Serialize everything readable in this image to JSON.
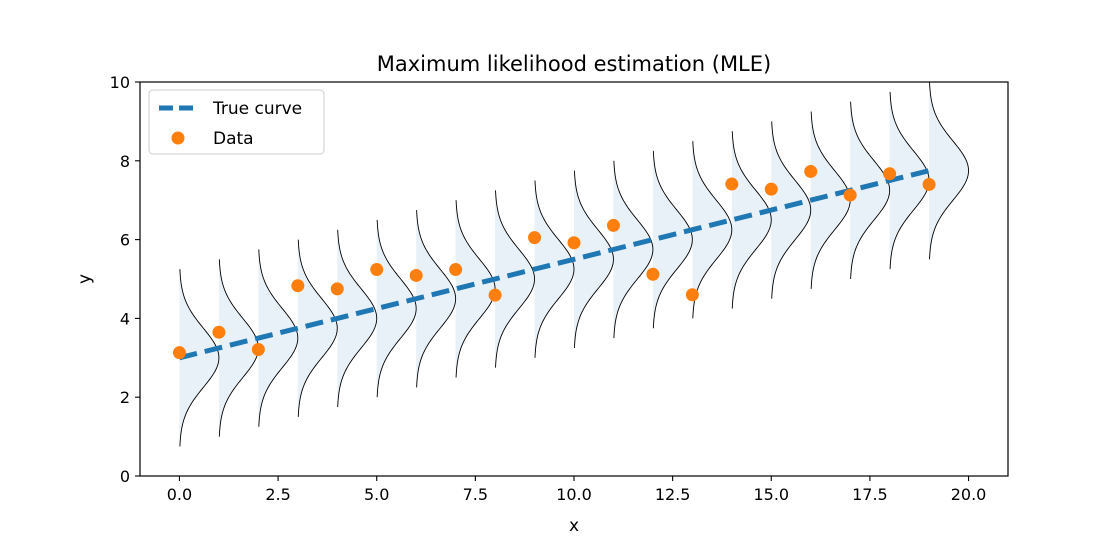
{
  "chart_data": {
    "type": "scatter",
    "title": "Maximum likelihood estimation (MLE)",
    "xlabel": "x",
    "ylabel": "y",
    "xlim": [
      -1,
      21
    ],
    "ylim": [
      0,
      10
    ],
    "x_ticks": [
      "0.0",
      "2.5",
      "5.0",
      "7.5",
      "10.0",
      "12.5",
      "15.0",
      "17.5",
      "20.0"
    ],
    "y_ticks": [
      "0",
      "2",
      "4",
      "6",
      "8",
      "10"
    ],
    "grid": false,
    "legend_position": "top-left",
    "series": [
      {
        "name": "True curve",
        "kind": "line",
        "style": "dashed",
        "color": "#1f77b4",
        "x": [
          0,
          19
        ],
        "y": [
          3.0,
          7.75
        ]
      },
      {
        "name": "Data",
        "kind": "scatter",
        "color": "#ff7f0e",
        "x": [
          0,
          1,
          2,
          3,
          4,
          5,
          6,
          7,
          8,
          9,
          10,
          11,
          12,
          13,
          14,
          15,
          16,
          17,
          18,
          19
        ],
        "y": [
          3.13,
          3.65,
          3.21,
          4.83,
          4.75,
          5.24,
          5.09,
          5.24,
          4.59,
          6.05,
          5.92,
          6.36,
          5.12,
          4.6,
          7.41,
          7.28,
          7.73,
          7.13,
          7.67,
          7.4
        ]
      }
    ],
    "distributions": {
      "color": "#000000",
      "fill_color": "#1f77b4",
      "x": [
        0,
        1,
        2,
        3,
        4,
        5,
        6,
        7,
        8,
        9,
        10,
        11,
        12,
        13,
        14,
        15,
        16,
        17,
        18,
        19
      ],
      "mean": [
        3.0,
        3.25,
        3.5,
        3.75,
        4.0,
        4.25,
        4.5,
        4.75,
        5.0,
        5.25,
        5.5,
        5.75,
        6.0,
        6.25,
        6.5,
        6.75,
        7.0,
        7.25,
        7.5,
        7.75
      ],
      "sd": 0.75,
      "range": 3
    }
  }
}
